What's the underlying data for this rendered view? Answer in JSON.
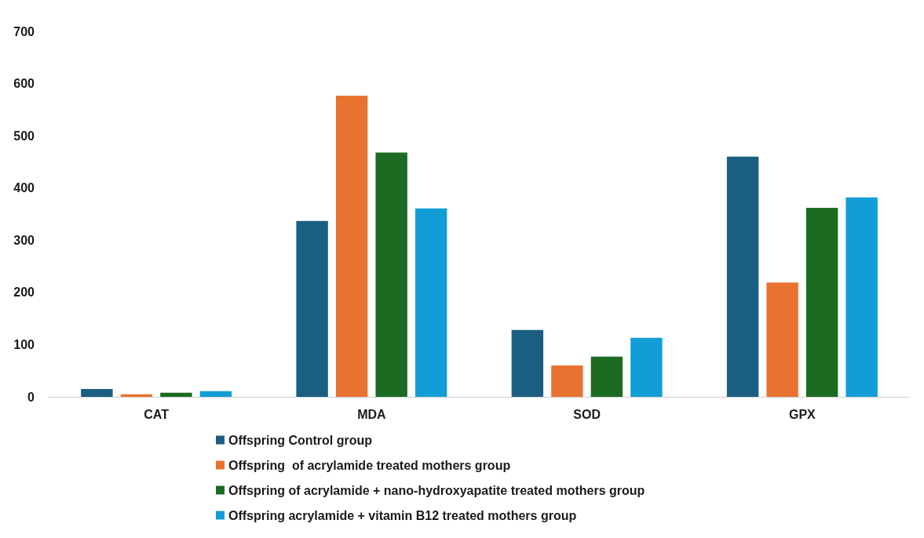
{
  "chart_data": {
    "type": "bar",
    "categories": [
      "CAT",
      "MDA",
      "SOD",
      "GPX"
    ],
    "series": [
      {
        "name": "Offspring Control group",
        "color": "#1a5e82",
        "values": [
          15,
          337,
          128,
          460
        ]
      },
      {
        "name": "Offspring  of acrylamide treated mothers group",
        "color": "#e87331",
        "values": [
          5,
          577,
          60,
          219
        ]
      },
      {
        "name": "Offspring of acrylamide + nano-hydroxyapatite treated mothers group",
        "color": "#1b6b22",
        "values": [
          8,
          468,
          77,
          362
        ]
      },
      {
        "name": "Offspring acrylamide + vitamin B12 treated mothers group",
        "color": "#129dd6",
        "values": [
          11,
          361,
          113,
          382
        ]
      }
    ],
    "ylim": [
      0,
      700
    ],
    "yticks": [
      0,
      100,
      200,
      300,
      400,
      500,
      600,
      700
    ],
    "grid": false,
    "legend": "bottom"
  }
}
